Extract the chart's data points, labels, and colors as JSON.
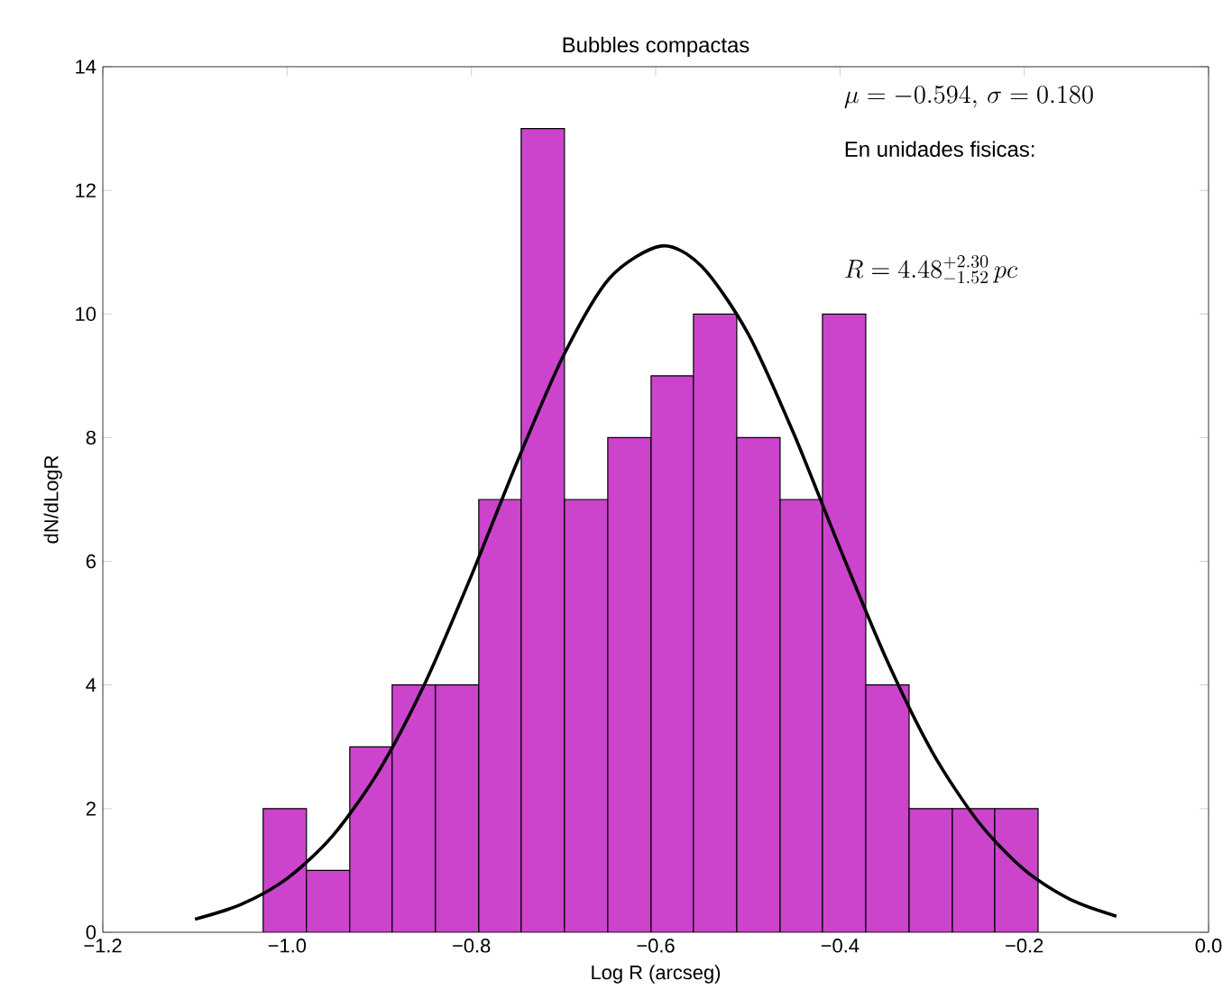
{
  "chart_data": {
    "type": "histogram",
    "title": "Bubbles compactas",
    "xlabel": "Log R (arcseg)",
    "ylabel": "dN/dLogR",
    "bins": [
      -1.026,
      -0.979,
      -0.932,
      -0.886,
      -0.839,
      -0.792,
      -0.746,
      -0.699,
      -0.652,
      -0.605,
      -0.559,
      -0.512,
      -0.465,
      -0.419,
      -0.372,
      -0.325,
      -0.278,
      -0.232,
      -0.185
    ],
    "values": [
      2,
      1,
      3,
      4,
      4,
      7,
      13,
      7,
      8,
      9,
      10,
      8,
      7,
      10,
      4,
      2,
      2,
      2
    ],
    "color": "#cc44cc",
    "series": [
      {
        "type": "line",
        "color": "#000000",
        "x": [
          -1.1,
          -1.05,
          -1.0,
          -0.95,
          -0.9,
          -0.85,
          -0.8,
          -0.75,
          -0.7,
          -0.65,
          -0.594,
          -0.55,
          -0.5,
          -0.45,
          -0.4,
          -0.35,
          -0.3,
          -0.25,
          -0.2,
          -0.15,
          -0.1
        ],
        "values": [
          0.21,
          0.45,
          0.87,
          1.57,
          2.62,
          4.04,
          5.77,
          7.62,
          9.33,
          10.58,
          11.1,
          10.77,
          9.69,
          8.06,
          6.21,
          4.43,
          2.92,
          1.79,
          1.01,
          0.53,
          0.26
        ]
      }
    ],
    "xlim": [
      -1.2,
      0.0
    ],
    "xticks": [
      {
        "value": -1.2,
        "label": "−1.2"
      },
      {
        "value": -1.0,
        "label": "−1.0"
      },
      {
        "value": -0.8,
        "label": "−0.8"
      },
      {
        "value": -0.6,
        "label": "−0.6"
      },
      {
        "value": -0.4,
        "label": "−0.4"
      },
      {
        "value": -0.2,
        "label": "−0.2"
      },
      {
        "value": 0.0,
        "label": "0.0"
      }
    ],
    "ylim": [
      0,
      14
    ],
    "yticks": [
      0,
      2,
      4,
      6,
      8,
      10,
      12,
      14
    ],
    "annotations": [
      "\\mu = -0.594,\\, \\sigma = 0.180",
      "En unidades fisicas:",
      "R = 4.48^{+2.30}_{-1.52}\\, pc"
    ]
  }
}
